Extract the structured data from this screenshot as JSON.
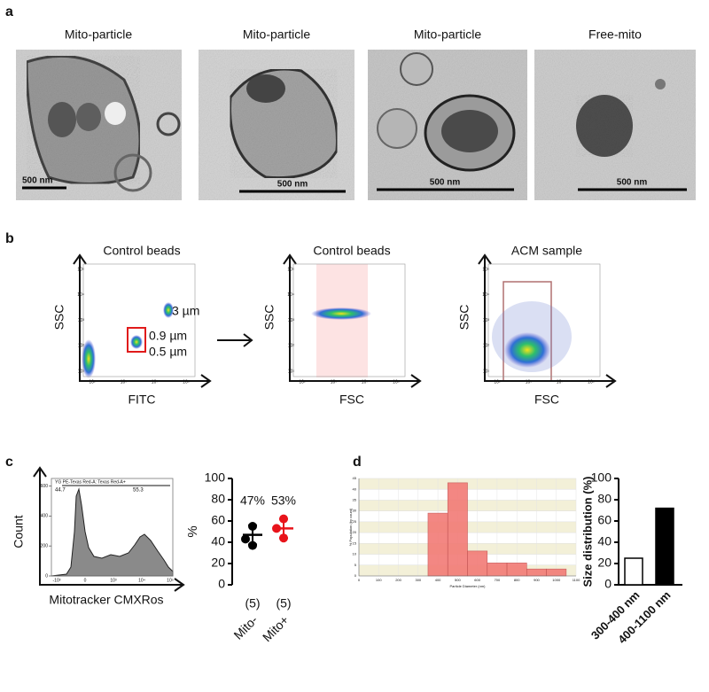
{
  "panel_labels": [
    "a",
    "b",
    "c",
    "d"
  ],
  "tem_images": [
    {
      "title": "Mito-particle",
      "scale_bar": "500 nm"
    },
    {
      "title": "Mito-particle",
      "scale_bar": "500 nm"
    },
    {
      "title": "Mito-particle",
      "scale_bar": "500 nm"
    },
    {
      "title": "Free-mito",
      "scale_bar": "500 nm"
    }
  ],
  "flow_plots": [
    {
      "title": "Control beads",
      "x_label": "FITC",
      "y_label": "SSC",
      "annotations": [
        "3 µm",
        "0.9 µm",
        "0.5 µm"
      ]
    },
    {
      "title": "Control beads",
      "x_label": "FSC",
      "y_label": "SSC"
    },
    {
      "title": "ACM sample",
      "x_label": "FSC",
      "y_label": "SSC"
    }
  ],
  "flow_x_ticks": [
    "10²",
    "10³",
    "10⁴",
    "10⁵"
  ],
  "flow_y_ticks": [
    "10¹",
    "10²",
    "10³",
    "10⁴",
    "10⁵"
  ],
  "count_histogram": {
    "header": "YG PE-Texas Red-A: Texas Red-A+",
    "gate_left": "44.7",
    "gate_right": "55.3",
    "y_label": "Count",
    "x_label": "Mitotracker CMXRos",
    "ylim": [
      0,
      650
    ],
    "yticks": [
      0,
      200,
      400,
      600
    ],
    "x_tick_labels": [
      "-10³",
      "0",
      "10³",
      "10⁴",
      "10⁵"
    ]
  },
  "chart_data": [
    {
      "type": "dot",
      "y_label": "%",
      "ylim": [
        0,
        100
      ],
      "yticks": [
        0,
        20,
        40,
        60,
        80,
        100
      ],
      "groups": [
        {
          "name": "Mito-",
          "color": "#000000",
          "points": [
            55,
            43,
            37
          ],
          "mean": 47,
          "error": 9,
          "mean_label": "47%",
          "n_label": "(5)"
        },
        {
          "name": "Mito+",
          "color": "#e8141b",
          "points": [
            62,
            53,
            44
          ],
          "mean": 53,
          "error": 9,
          "mean_label": "53%",
          "n_label": "(5)"
        }
      ]
    },
    {
      "type": "histogram",
      "x_label": "Particle Diameter (nm)",
      "y_label": "% Population (by count)",
      "bins": [
        350,
        450,
        550,
        650,
        750,
        850,
        950,
        1050
      ],
      "values": [
        29,
        43,
        11.5,
        6,
        6,
        3.2,
        3.2
      ],
      "color": "#f27b76",
      "xlim": [
        0,
        1100
      ],
      "xticks": [
        0,
        100,
        200,
        300,
        400,
        500,
        600,
        700,
        800,
        900,
        1000,
        1100
      ],
      "ylim": [
        0,
        45
      ],
      "yticks": [
        0,
        5,
        10,
        15,
        20,
        25,
        30,
        35,
        40,
        45
      ]
    },
    {
      "type": "bar",
      "y_label": "Size distribution (%)",
      "categories": [
        "300-400 nm",
        "400-1100 nm"
      ],
      "values": [
        25,
        72
      ],
      "colors": [
        "#ffffff",
        "#000000"
      ],
      "ylim": [
        0,
        100
      ],
      "yticks": [
        0,
        20,
        40,
        60,
        80,
        100
      ]
    }
  ]
}
